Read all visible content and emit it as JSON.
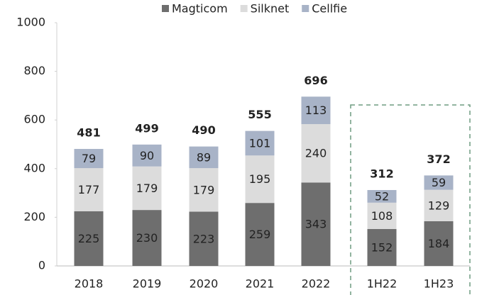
{
  "chart_data": {
    "type": "stacked_bar",
    "categories": [
      "2018",
      "2019",
      "2020",
      "2021",
      "2022",
      "1H22",
      "1H23"
    ],
    "series": [
      {
        "name": "Magticom",
        "color": "#6e6e6e",
        "values": [
          225,
          230,
          223,
          259,
          343,
          152,
          184
        ]
      },
      {
        "name": "Silknet",
        "color": "#dcdcdc",
        "values": [
          177,
          179,
          179,
          195,
          240,
          108,
          129
        ]
      },
      {
        "name": "Cellfie",
        "color": "#a8b3c7",
        "values": [
          79,
          90,
          89,
          101,
          113,
          52,
          59
        ]
      }
    ],
    "totals": [
      481,
      499,
      490,
      555,
      696,
      312,
      372
    ],
    "ylim": [
      0,
      1000
    ],
    "yticks": [
      0,
      200,
      400,
      600,
      800,
      1000
    ],
    "legend": "top"
  }
}
